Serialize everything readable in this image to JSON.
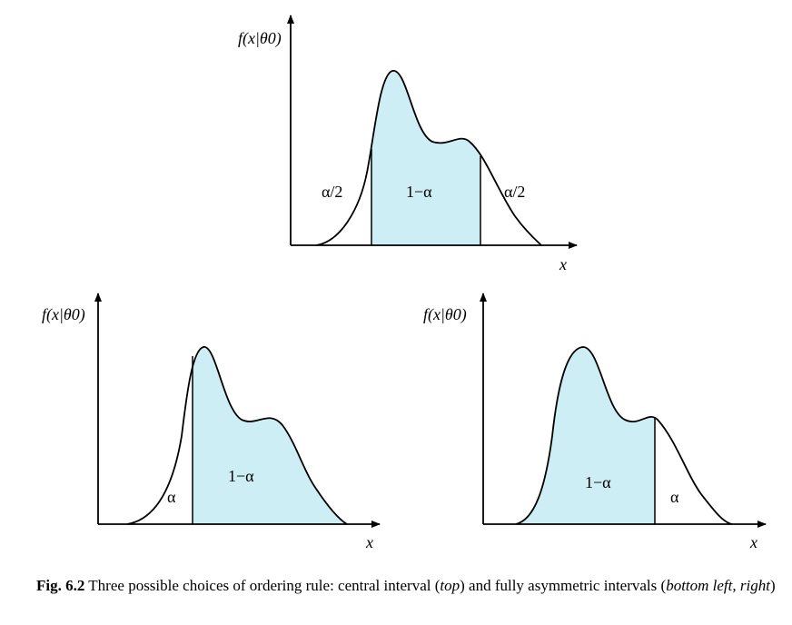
{
  "panels": {
    "top": {
      "ylabel": "f(x|θ0)",
      "xlabel": "x",
      "region_labels": {
        "left_tail": "α/2",
        "center": "1−α",
        "right_tail": "α/2"
      }
    },
    "bottom_left": {
      "ylabel": "f(x|θ0)",
      "xlabel": "x",
      "region_labels": {
        "tail": "α",
        "center": "1−α"
      }
    },
    "bottom_right": {
      "ylabel": "f(x|θ0)",
      "xlabel": "x",
      "region_labels": {
        "center": "1−α",
        "tail": "α"
      }
    }
  },
  "caption": {
    "label": "Fig. 6.2",
    "text_1": " Three possible choices of ordering rule: central interval (",
    "top_word": "top",
    "text_2": ") and fully asymmetric intervals (",
    "bottom_words": "bottom left, right",
    "text_3": ")"
  },
  "colors": {
    "shade": "#cdeef5",
    "line": "#000000"
  }
}
